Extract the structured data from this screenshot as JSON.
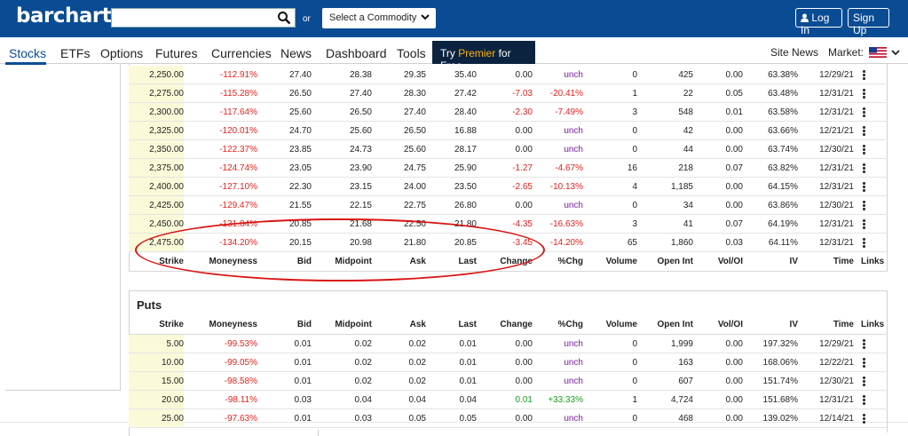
{
  "header": {
    "logo": "barchart",
    "search_placeholder": "",
    "or_label": "or",
    "commodity_select": "Select a Commodity",
    "login_label": "Log In",
    "signup_label": "Sign Up"
  },
  "nav": {
    "items": [
      "Stocks",
      "ETFs",
      "Options",
      "Futures",
      "Currencies",
      "News",
      "Dashboard",
      "Tools"
    ],
    "premier_prefix": "Try ",
    "premier_highlight": "Premier",
    "premier_suffix": " for Free",
    "site_news": "Site News",
    "market_label": "Market:"
  },
  "columns": [
    "Strike",
    "Moneyness",
    "Bid",
    "Midpoint",
    "Ask",
    "Last",
    "Change",
    "%Chg",
    "Volume",
    "Open Int",
    "Vol/OI",
    "IV",
    "Time",
    "Links"
  ],
  "calls": {
    "rows": [
      {
        "strike": "2,250.00",
        "moneyness": "-112.91%",
        "bid": "27.40",
        "mid": "28.38",
        "ask": "29.35",
        "last": "35.40",
        "change": "0.00",
        "pchg": "unch",
        "volume": "0",
        "oi": "425",
        "voi": "0.00",
        "iv": "63.38%",
        "time": "12/29/21"
      },
      {
        "strike": "2,275.00",
        "moneyness": "-115.28%",
        "bid": "26.50",
        "mid": "27.40",
        "ask": "28.30",
        "last": "27.42",
        "change": "-7.03",
        "pchg": "-20.41%",
        "volume": "1",
        "oi": "22",
        "voi": "0.05",
        "iv": "63.48%",
        "time": "12/31/21"
      },
      {
        "strike": "2,300.00",
        "moneyness": "-117.64%",
        "bid": "25.60",
        "mid": "26.50",
        "ask": "27.40",
        "last": "28.40",
        "change": "-2.30",
        "pchg": "-7.49%",
        "volume": "3",
        "oi": "548",
        "voi": "0.01",
        "iv": "63.58%",
        "time": "12/31/21"
      },
      {
        "strike": "2,325.00",
        "moneyness": "-120.01%",
        "bid": "24.70",
        "mid": "25.60",
        "ask": "26.50",
        "last": "16.88",
        "change": "0.00",
        "pchg": "unch",
        "volume": "0",
        "oi": "42",
        "voi": "0.00",
        "iv": "63.66%",
        "time": "12/21/21"
      },
      {
        "strike": "2,350.00",
        "moneyness": "-122.37%",
        "bid": "23.85",
        "mid": "24.73",
        "ask": "25.60",
        "last": "28.17",
        "change": "0.00",
        "pchg": "unch",
        "volume": "0",
        "oi": "44",
        "voi": "0.00",
        "iv": "63.74%",
        "time": "12/30/21"
      },
      {
        "strike": "2,375.00",
        "moneyness": "-124.74%",
        "bid": "23.05",
        "mid": "23.90",
        "ask": "24.75",
        "last": "25.90",
        "change": "-1.27",
        "pchg": "-4.67%",
        "volume": "16",
        "oi": "218",
        "voi": "0.07",
        "iv": "63.82%",
        "time": "12/31/21"
      },
      {
        "strike": "2,400.00",
        "moneyness": "-127.10%",
        "bid": "22.30",
        "mid": "23.15",
        "ask": "24.00",
        "last": "23.50",
        "change": "-2.65",
        "pchg": "-10.13%",
        "volume": "4",
        "oi": "1,185",
        "voi": "0.00",
        "iv": "64.15%",
        "time": "12/31/21"
      },
      {
        "strike": "2,425.00",
        "moneyness": "-129.47%",
        "bid": "21.55",
        "mid": "22.15",
        "ask": "22.75",
        "last": "26.80",
        "change": "0.00",
        "pchg": "unch",
        "volume": "0",
        "oi": "34",
        "voi": "0.00",
        "iv": "63.86%",
        "time": "12/30/21"
      },
      {
        "strike": "2,450.00",
        "moneyness": "-131.84%",
        "bid": "20.85",
        "mid": "21.68",
        "ask": "22.50",
        "last": "21.80",
        "change": "-4.35",
        "pchg": "-16.63%",
        "volume": "3",
        "oi": "41",
        "voi": "0.07",
        "iv": "64.19%",
        "time": "12/31/21"
      },
      {
        "strike": "2,475.00",
        "moneyness": "-134.20%",
        "bid": "20.15",
        "mid": "20.98",
        "ask": "21.80",
        "last": "20.85",
        "change": "-3.45",
        "pchg": "-14.20%",
        "volume": "65",
        "oi": "1,860",
        "voi": "0.03",
        "iv": "64.11%",
        "time": "12/31/21"
      }
    ]
  },
  "puts": {
    "title": "Puts",
    "rows": [
      {
        "strike": "5.00",
        "moneyness": "-99.53%",
        "bid": "0.01",
        "mid": "0.02",
        "ask": "0.02",
        "last": "0.01",
        "change": "0.00",
        "pchg": "unch",
        "volume": "0",
        "oi": "1,999",
        "voi": "0.00",
        "iv": "197.32%",
        "time": "12/29/21"
      },
      {
        "strike": "10.00",
        "moneyness": "-99.05%",
        "bid": "0.01",
        "mid": "0.02",
        "ask": "0.02",
        "last": "0.01",
        "change": "0.00",
        "pchg": "unch",
        "volume": "0",
        "oi": "163",
        "voi": "0.00",
        "iv": "168.06%",
        "time": "12/22/21"
      },
      {
        "strike": "15.00",
        "moneyness": "-98.58%",
        "bid": "0.01",
        "mid": "0.02",
        "ask": "0.02",
        "last": "0.01",
        "change": "0.00",
        "pchg": "unch",
        "volume": "0",
        "oi": "607",
        "voi": "0.00",
        "iv": "151.74%",
        "time": "12/30/21"
      },
      {
        "strike": "20.00",
        "moneyness": "-98.11%",
        "bid": "0.03",
        "mid": "0.04",
        "ask": "0.04",
        "last": "0.04",
        "change": "0.01",
        "pchg": "+33.33%",
        "volume": "1",
        "oi": "4,724",
        "voi": "0.00",
        "iv": "151.68%",
        "time": "12/31/21"
      },
      {
        "strike": "25.00",
        "moneyness": "-97.63%",
        "bid": "0.01",
        "mid": "0.03",
        "ask": "0.05",
        "last": "0.05",
        "change": "0.00",
        "pchg": "unch",
        "volume": "0",
        "oi": "468",
        "voi": "0.00",
        "iv": "139.02%",
        "time": "12/14/21"
      }
    ]
  },
  "colors": {
    "brand": "#0a4c94",
    "negative": "#e8211b",
    "positive": "#1aa01a",
    "unchanged": "#7a1fa0",
    "annotation": "#d81414"
  },
  "icons": [
    "search-icon",
    "chevron-down-icon",
    "user-icon",
    "us-flag-icon",
    "more-vertical-icon"
  ]
}
